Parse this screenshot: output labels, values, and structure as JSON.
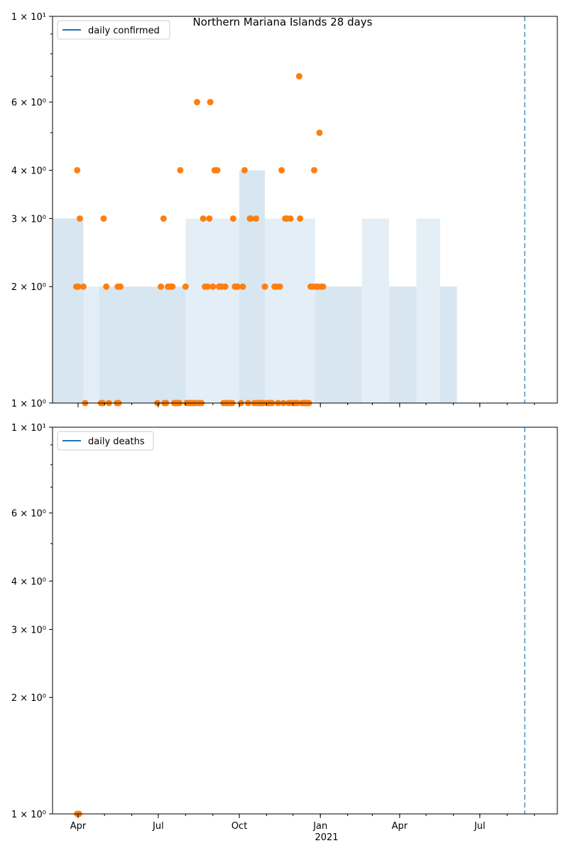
{
  "figure_title": "Northern Mariana Islands 28 days",
  "colors": {
    "line": "#1f77b4",
    "points": "#ff7f0e",
    "band": "#1f77b4",
    "vline": "#1f77b4"
  },
  "x_axis": {
    "ticks": [
      {
        "date": "2020-04-01",
        "label": "Apr"
      },
      {
        "date": "2020-07-01",
        "label": "Jul"
      },
      {
        "date": "2020-10-01",
        "label": "Oct"
      },
      {
        "date": "2021-01-01",
        "label": "Jan"
      },
      {
        "date": "2021-04-01",
        "label": "Apr"
      },
      {
        "date": "2021-07-01",
        "label": "Jul"
      }
    ],
    "year_label": "2021",
    "xlim": [
      "2020-03-03",
      "2021-09-27"
    ]
  },
  "y_tick_labels": [
    "1 × 10⁰",
    "2 × 10⁰",
    "3 × 10⁰",
    "4 × 10⁰",
    "6 × 10⁰",
    "1 × 10¹"
  ],
  "chart_data": [
    {
      "type": "scatter",
      "title": "Northern Mariana Islands 28 days",
      "legend": "daily confirmed",
      "legend_loc": "upper left",
      "yscale": "log",
      "ylim": [
        1,
        10
      ],
      "ytick_values": [
        1,
        2,
        3,
        4,
        6,
        10
      ],
      "vline_date": "2021-08-21",
      "band_segments": [
        {
          "start": "2020-03-03",
          "end": "2020-04-07",
          "low": 1,
          "high": 3
        },
        {
          "start": "2020-04-07",
          "end": "2020-04-25",
          "low": 1,
          "high": 2
        },
        {
          "start": "2020-04-25",
          "end": "2020-08-01",
          "low": 1,
          "high": 2
        },
        {
          "start": "2020-08-01",
          "end": "2020-10-01",
          "low": 1,
          "high": 3
        },
        {
          "start": "2020-10-01",
          "end": "2020-10-30",
          "low": 1,
          "high": 4
        },
        {
          "start": "2020-10-30",
          "end": "2020-12-26",
          "low": 1,
          "high": 3
        },
        {
          "start": "2020-12-26",
          "end": "2021-02-17",
          "low": 1,
          "high": 2
        },
        {
          "start": "2021-02-17",
          "end": "2021-03-20",
          "low": 1,
          "high": 3
        },
        {
          "start": "2021-03-20",
          "end": "2021-04-20",
          "low": 1,
          "high": 2
        },
        {
          "start": "2021-04-20",
          "end": "2021-05-17",
          "low": 1,
          "high": 3
        },
        {
          "start": "2021-05-17",
          "end": "2021-06-05",
          "low": 1,
          "high": 2
        }
      ],
      "points": [
        {
          "date": "2020-03-30",
          "value": 2
        },
        {
          "date": "2020-03-31",
          "value": 4
        },
        {
          "date": "2020-04-01",
          "value": 2
        },
        {
          "date": "2020-04-03",
          "value": 3
        },
        {
          "date": "2020-04-07",
          "value": 2
        },
        {
          "date": "2020-04-09",
          "value": 1
        },
        {
          "date": "2020-04-27",
          "value": 1
        },
        {
          "date": "2020-04-29",
          "value": 1
        },
        {
          "date": "2020-04-30",
          "value": 3
        },
        {
          "date": "2020-05-03",
          "value": 2
        },
        {
          "date": "2020-05-06",
          "value": 1
        },
        {
          "date": "2020-05-15",
          "value": 1
        },
        {
          "date": "2020-05-16",
          "value": 2
        },
        {
          "date": "2020-05-17",
          "value": 1
        },
        {
          "date": "2020-05-19",
          "value": 2
        },
        {
          "date": "2020-06-30",
          "value": 1
        },
        {
          "date": "2020-07-04",
          "value": 2
        },
        {
          "date": "2020-07-07",
          "value": 3
        },
        {
          "date": "2020-07-08",
          "value": 1
        },
        {
          "date": "2020-07-10",
          "value": 1
        },
        {
          "date": "2020-07-12",
          "value": 2
        },
        {
          "date": "2020-07-14",
          "value": 2
        },
        {
          "date": "2020-07-16",
          "value": 2
        },
        {
          "date": "2020-07-17",
          "value": 2
        },
        {
          "date": "2020-07-19",
          "value": 1
        },
        {
          "date": "2020-07-21",
          "value": 1
        },
        {
          "date": "2020-07-23",
          "value": 1
        },
        {
          "date": "2020-07-25",
          "value": 1
        },
        {
          "date": "2020-07-26",
          "value": 4
        },
        {
          "date": "2020-08-01",
          "value": 2
        },
        {
          "date": "2020-08-02",
          "value": 1
        },
        {
          "date": "2020-08-04",
          "value": 1
        },
        {
          "date": "2020-08-06",
          "value": 1
        },
        {
          "date": "2020-08-08",
          "value": 1
        },
        {
          "date": "2020-08-10",
          "value": 1
        },
        {
          "date": "2020-08-12",
          "value": 1
        },
        {
          "date": "2020-08-14",
          "value": 6
        },
        {
          "date": "2020-08-16",
          "value": 1
        },
        {
          "date": "2020-08-19",
          "value": 1
        },
        {
          "date": "2020-08-21",
          "value": 3
        },
        {
          "date": "2020-08-23",
          "value": 2
        },
        {
          "date": "2020-08-26",
          "value": 2
        },
        {
          "date": "2020-08-28",
          "value": 3
        },
        {
          "date": "2020-08-29",
          "value": 6
        },
        {
          "date": "2020-09-01",
          "value": 2
        },
        {
          "date": "2020-09-03",
          "value": 4
        },
        {
          "date": "2020-09-06",
          "value": 4
        },
        {
          "date": "2020-09-08",
          "value": 2
        },
        {
          "date": "2020-09-10",
          "value": 2
        },
        {
          "date": "2020-09-11",
          "value": 2
        },
        {
          "date": "2020-09-13",
          "value": 1
        },
        {
          "date": "2020-09-15",
          "value": 2
        },
        {
          "date": "2020-09-16",
          "value": 1
        },
        {
          "date": "2020-09-18",
          "value": 1
        },
        {
          "date": "2020-09-21",
          "value": 1
        },
        {
          "date": "2020-09-23",
          "value": 1
        },
        {
          "date": "2020-09-24",
          "value": 3
        },
        {
          "date": "2020-09-26",
          "value": 2
        },
        {
          "date": "2020-09-27",
          "value": 2
        },
        {
          "date": "2020-09-29",
          "value": 2
        },
        {
          "date": "2020-10-03",
          "value": 1
        },
        {
          "date": "2020-10-05",
          "value": 2
        },
        {
          "date": "2020-10-07",
          "value": 4
        },
        {
          "date": "2020-10-11",
          "value": 1
        },
        {
          "date": "2020-10-13",
          "value": 3
        },
        {
          "date": "2020-10-14",
          "value": 3
        },
        {
          "date": "2020-10-18",
          "value": 1
        },
        {
          "date": "2020-10-20",
          "value": 3
        },
        {
          "date": "2020-10-22",
          "value": 1
        },
        {
          "date": "2020-10-23",
          "value": 1
        },
        {
          "date": "2020-10-25",
          "value": 1
        },
        {
          "date": "2020-10-26",
          "value": 1
        },
        {
          "date": "2020-10-28",
          "value": 1
        },
        {
          "date": "2020-10-30",
          "value": 2
        },
        {
          "date": "2020-11-01",
          "value": 1
        },
        {
          "date": "2020-11-03",
          "value": 1
        },
        {
          "date": "2020-11-05",
          "value": 1
        },
        {
          "date": "2020-11-07",
          "value": 1
        },
        {
          "date": "2020-11-10",
          "value": 2
        },
        {
          "date": "2020-11-12",
          "value": 2
        },
        {
          "date": "2020-11-14",
          "value": 1
        },
        {
          "date": "2020-11-16",
          "value": 2
        },
        {
          "date": "2020-11-18",
          "value": 4
        },
        {
          "date": "2020-11-20",
          "value": 1
        },
        {
          "date": "2020-11-22",
          "value": 3
        },
        {
          "date": "2020-11-24",
          "value": 3
        },
        {
          "date": "2020-11-26",
          "value": 1
        },
        {
          "date": "2020-11-28",
          "value": 3
        },
        {
          "date": "2020-11-30",
          "value": 1
        },
        {
          "date": "2020-12-02",
          "value": 1
        },
        {
          "date": "2020-12-04",
          "value": 1
        },
        {
          "date": "2020-12-06",
          "value": 1
        },
        {
          "date": "2020-12-08",
          "value": 7
        },
        {
          "date": "2020-12-09",
          "value": 3
        },
        {
          "date": "2020-12-11",
          "value": 1
        },
        {
          "date": "2020-12-13",
          "value": 1
        },
        {
          "date": "2020-12-15",
          "value": 1
        },
        {
          "date": "2020-12-17",
          "value": 1
        },
        {
          "date": "2020-12-19",
          "value": 1
        },
        {
          "date": "2020-12-21",
          "value": 2
        },
        {
          "date": "2020-12-23",
          "value": 2
        },
        {
          "date": "2020-12-25",
          "value": 4
        },
        {
          "date": "2020-12-27",
          "value": 2
        },
        {
          "date": "2020-12-29",
          "value": 2
        },
        {
          "date": "2020-12-31",
          "value": 5
        },
        {
          "date": "2021-01-02",
          "value": 2
        },
        {
          "date": "2021-01-04",
          "value": 2
        }
      ]
    },
    {
      "type": "scatter",
      "legend": "daily deaths",
      "legend_loc": "upper left",
      "yscale": "log",
      "ylim": [
        1,
        10
      ],
      "ytick_values": [
        1,
        2,
        3,
        4,
        6,
        10
      ],
      "vline_date": "2021-08-21",
      "points": [
        {
          "date": "2020-03-31",
          "value": 1
        },
        {
          "date": "2020-04-02",
          "value": 1
        }
      ]
    }
  ]
}
